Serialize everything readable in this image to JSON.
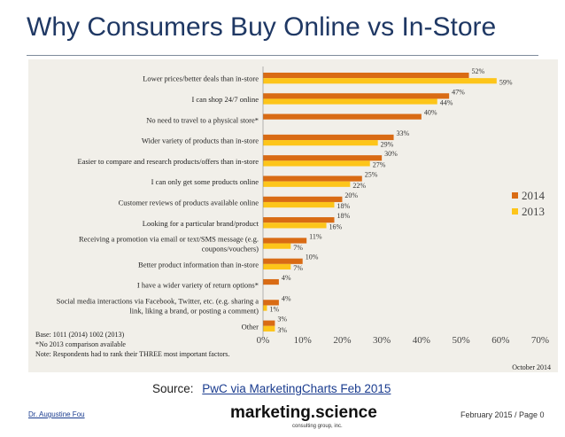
{
  "slide": {
    "title": "Why Consumers Buy Online vs In-Store",
    "source_prefix": "Source:",
    "source_link": "PwC via MarketingCharts Feb 2015",
    "author": "Dr. Augustine Fou",
    "brand": "marketing.science",
    "brand_sub": "consulting group, inc.",
    "page_info": "February 2015 / Page 0"
  },
  "colors": {
    "series_2014": "#d96b14",
    "series_2013": "#fdc51a",
    "title": "#1f3864"
  },
  "chart_data": {
    "type": "bar",
    "orientation": "horizontal",
    "categories": [
      [
        "Lower prices/better deals than in-store"
      ],
      [
        "I can shop 24/7 online"
      ],
      [
        "No need to travel to a physical store*"
      ],
      [
        "Wider variety of products than in-store"
      ],
      [
        "Easier to compare and research products/offers than in-store"
      ],
      [
        "I can only get some products online"
      ],
      [
        "Customer reviews of products available online"
      ],
      [
        "Looking for a particular brand/product"
      ],
      [
        "Receiving a promotion via email or text/SMS message (e.g.",
        "coupons/vouchers)"
      ],
      [
        "Better product information than in-store"
      ],
      [
        "I have a wider variety of return options*"
      ],
      [
        "Social media interactions via Facebook, Twitter, etc. (e.g. sharing a",
        "link, liking a brand, or posting a comment)"
      ],
      [
        "Other"
      ]
    ],
    "series": [
      {
        "name": "2014",
        "values": [
          52,
          47,
          40,
          33,
          30,
          25,
          20,
          18,
          11,
          10,
          4,
          4,
          3
        ]
      },
      {
        "name": "2013",
        "values": [
          59,
          44,
          null,
          29,
          27,
          22,
          18,
          16,
          7,
          7,
          null,
          1,
          3
        ]
      }
    ],
    "xlim": [
      0,
      70
    ],
    "xticks": [
      "0%",
      "10%",
      "20%",
      "30%",
      "40%",
      "50%",
      "60%",
      "70%"
    ],
    "value_suffix": "%",
    "legend": [
      "2014",
      "2013"
    ],
    "notes": [
      "Base: 1011 (2014)  1002 (2013)",
      "*No 2013 comparison available",
      "Note: Respondents had to rank their THREE most important factors."
    ],
    "date_label": "October 2014"
  }
}
